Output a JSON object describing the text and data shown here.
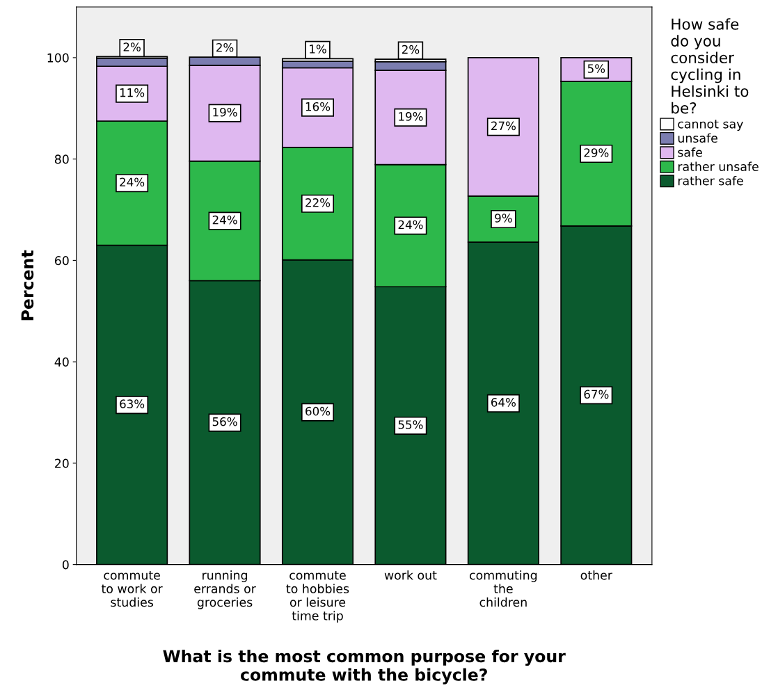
{
  "chart_data": {
    "type": "bar",
    "stacked": true,
    "xlabel": "What is the most common purpose for your\ncommute with the bicycle?",
    "ylabel": "Percent",
    "legend_title": "How safe\ndo you\nconsider\ncycling in\nHelsinki to\nbe?",
    "categories": [
      "commute\nto work or\nstudies",
      "running\nerrands or\ngroceries",
      "commute\nto hobbies\nor leisure\ntime trip",
      "work out",
      "commuting\nthe\nchildren",
      "other"
    ],
    "series": [
      {
        "name": "rather safe",
        "color": "#0b5a2e",
        "values": [
          63.0,
          56.0,
          60.1,
          54.8,
          63.6,
          66.8
        ],
        "value_labels": [
          "63%",
          "56%",
          "60%",
          "55%",
          "64%",
          "67%"
        ]
      },
      {
        "name": "rather unsafe",
        "color": "#2db84b",
        "values": [
          24.5,
          23.6,
          22.2,
          24.1,
          9.1,
          28.5
        ],
        "value_labels": [
          "24%",
          "24%",
          "22%",
          "24%",
          "9%",
          "29%"
        ]
      },
      {
        "name": "safe",
        "color": "#dfb8f0",
        "values": [
          10.8,
          18.9,
          15.7,
          18.6,
          27.3,
          4.7
        ],
        "value_labels": [
          "11%",
          "19%",
          "16%",
          "19%",
          "27%",
          "5%"
        ]
      },
      {
        "name": "unsafe",
        "color": "#7b7db0",
        "values": [
          1.6,
          1.6,
          1.3,
          1.7,
          null,
          null
        ],
        "value_labels": [
          "2%",
          "2%",
          "1%",
          "2%",
          null,
          null
        ]
      },
      {
        "name": "cannot say",
        "color": "#ffffff",
        "values": [
          0.3,
          null,
          0.5,
          0.5,
          null,
          null
        ],
        "value_labels": [
          null,
          null,
          null,
          null,
          null,
          null
        ]
      }
    ],
    "ylim": [
      0,
      110
    ],
    "yticks": [
      0,
      20,
      40,
      60,
      80,
      100
    ],
    "grid": false,
    "legend": "right"
  }
}
